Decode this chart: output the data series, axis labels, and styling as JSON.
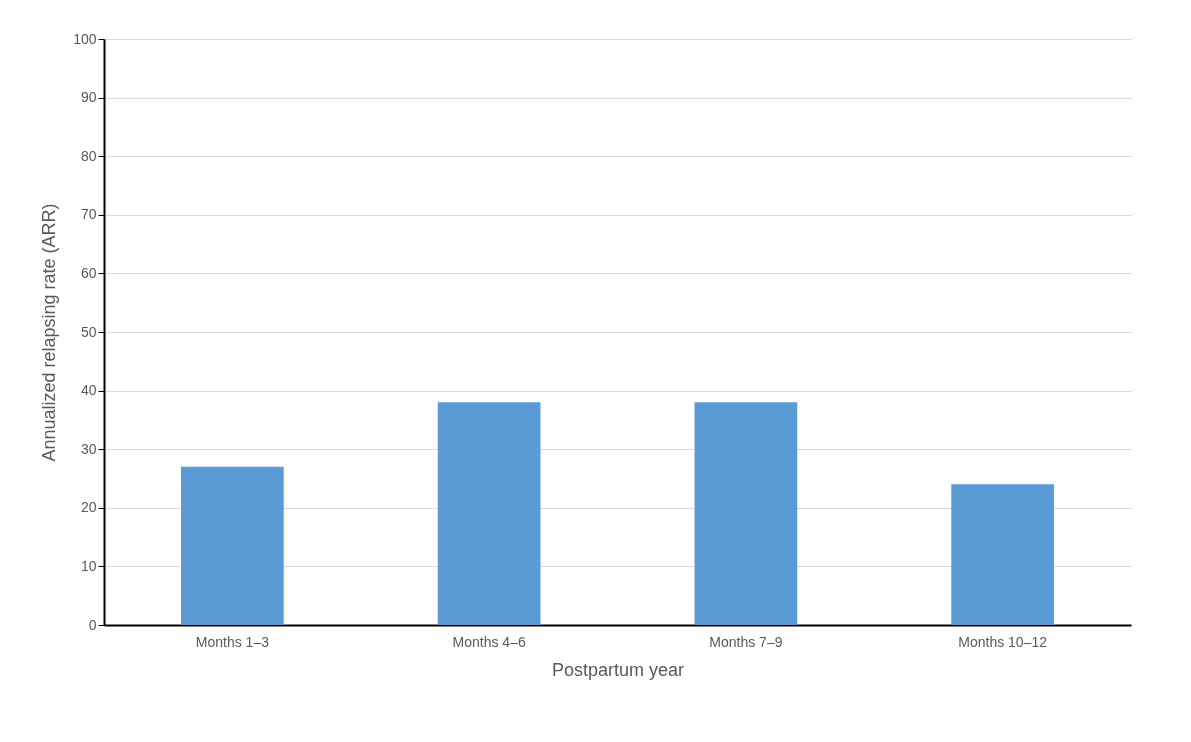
{
  "chart_data": {
    "type": "bar",
    "xlabel": "Postpartum year",
    "ylabel": "Annualized relapsing rate (ARR)",
    "categories": [
      "Months 1–3",
      "Months 4–6",
      "Months 7–9",
      "Months 10–12"
    ],
    "values": [
      27,
      38,
      38,
      24
    ],
    "color": "#5b9bd5",
    "ylim": [
      0,
      100
    ],
    "yticks": [
      0,
      10,
      20,
      30,
      40,
      50,
      60,
      70,
      80,
      90,
      100
    ],
    "grid": "y"
  }
}
